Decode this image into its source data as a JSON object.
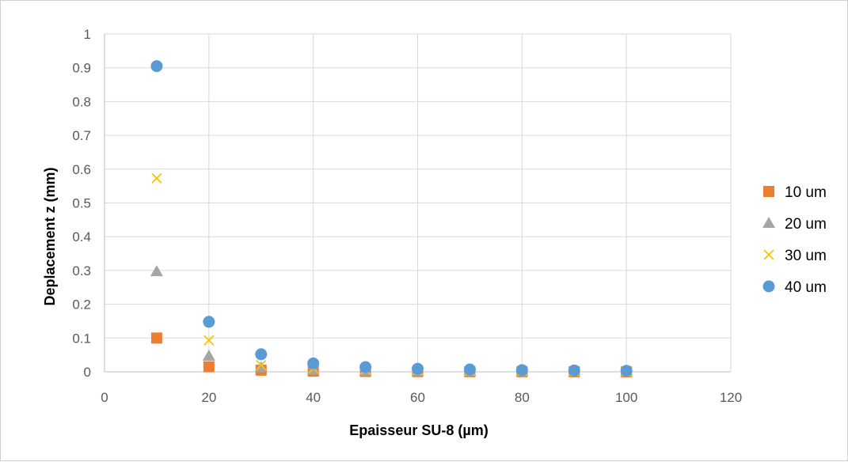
{
  "chart_data": {
    "type": "scatter",
    "title": "",
    "xlabel": "Epaisseur SU-8 (µm)",
    "ylabel": "Deplacement z (mm)",
    "xlim": [
      0,
      120
    ],
    "ylim": [
      0,
      1
    ],
    "xticks": [
      0,
      20,
      40,
      60,
      80,
      100,
      120
    ],
    "yticks": [
      0,
      0.1,
      0.2,
      0.3,
      0.4,
      0.5,
      0.6,
      0.7,
      0.8,
      0.9,
      1
    ],
    "xtick_labels": [
      "0",
      "20",
      "40",
      "60",
      "80",
      "100",
      "120"
    ],
    "ytick_labels": [
      "0",
      "0.1",
      "0.2",
      "0.3",
      "0.4",
      "0.5",
      "0.6",
      "0.7",
      "0.8",
      "0.9",
      "1"
    ],
    "grid": true,
    "legend_position": "right",
    "x": [
      10,
      20,
      30,
      40,
      50,
      60,
      70,
      80,
      90,
      100
    ],
    "series": [
      {
        "name": "10 um",
        "marker": "square",
        "color": "#ED7D31",
        "values": [
          0.1,
          0.015,
          0.005,
          0.002,
          0.001,
          0.0007,
          0.0005,
          0.0004,
          0.0003,
          0.0002
        ]
      },
      {
        "name": "20 um",
        "marker": "triangle",
        "color": "#A5A5A5",
        "values": [
          0.297,
          0.047,
          0.013,
          0.006,
          0.003,
          0.002,
          0.0015,
          0.001,
          0.0008,
          0.0006
        ]
      },
      {
        "name": "30 um",
        "marker": "x",
        "color": "#FFC000",
        "values": [
          0.573,
          0.093,
          0.02,
          0.01,
          0.006,
          0.004,
          0.003,
          0.002,
          0.0015,
          0.001
        ]
      },
      {
        "name": "40 um",
        "marker": "circle",
        "color": "#5B9BD5",
        "values": [
          0.905,
          0.148,
          0.052,
          0.025,
          0.014,
          0.009,
          0.007,
          0.005,
          0.004,
          0.003
        ]
      }
    ]
  }
}
